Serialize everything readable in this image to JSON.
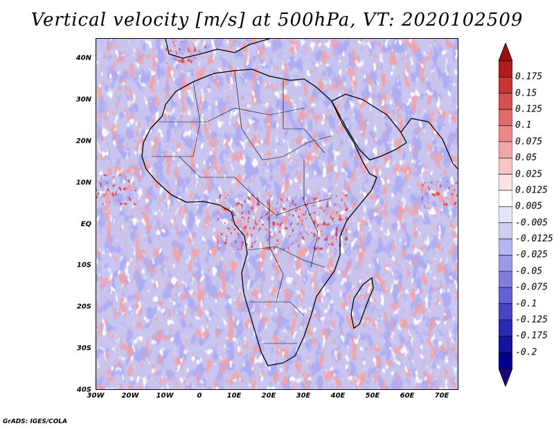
{
  "title": "Vertical velocity [m/s] at 500hPa, VT: 2020102509",
  "credit": "GrADS: IGES/COLA",
  "map": {
    "lat_ticks": [
      "40N",
      "30N",
      "20N",
      "10N",
      "EQ",
      "10S",
      "20S",
      "30S",
      "40S"
    ],
    "lon_ticks": [
      "30W",
      "20W",
      "10W",
      "0",
      "10E",
      "20E",
      "30E",
      "40E",
      "50E",
      "60E",
      "70E"
    ]
  },
  "colorbar": {
    "labels": [
      "0.175",
      "0.15",
      "0.125",
      "0.1",
      "0.075",
      "0.05",
      "0.025",
      "0.0125",
      "0.005",
      "-0.005",
      "-0.0125",
      "-0.025",
      "-0.05",
      "-0.075",
      "-0.1",
      "-0.125",
      "-0.175",
      "-0.2"
    ],
    "colors": [
      "#b01c1c",
      "#c63434",
      "#d55050",
      "#e06b6b",
      "#ea8989",
      "#f2a7a7",
      "#f8c6c6",
      "#fce2e2",
      "#ffffff",
      "#e6e6fb",
      "#cfcff6",
      "#b5b5f0",
      "#9a9ae8",
      "#7e7ede",
      "#6262d4",
      "#4545c6",
      "#2a2ab4",
      "#1414a0",
      "#00008a"
    ],
    "top_color": "#9b0f0f",
    "bottom_color": "#1a0080"
  }
}
